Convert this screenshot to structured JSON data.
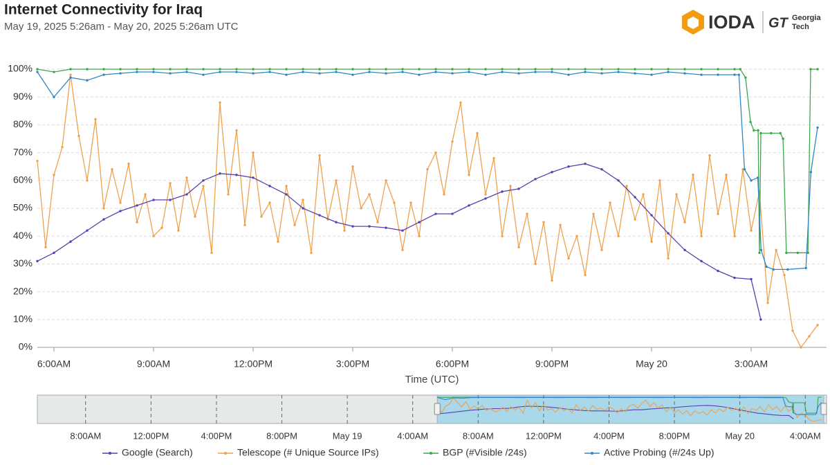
{
  "header": {
    "title": "Internet Connectivity for Iraq",
    "subtitle": "May 19, 2025 5:26am - May 20, 2025 5:26am UTC",
    "logo": "IODA",
    "partner_mark": "GT",
    "partner_name": [
      "Georgia",
      "Tech"
    ]
  },
  "chart_data": [
    {
      "type": "line",
      "xlabel": "Time (UTC)",
      "xlim": [
        5.5,
        29.27
      ],
      "ylim": [
        0,
        100
      ],
      "grid": true,
      "xticks": [
        {
          "value": 6,
          "label": "6:00AM"
        },
        {
          "value": 9,
          "label": "9:00AM"
        },
        {
          "value": 12,
          "label": "12:00PM"
        },
        {
          "value": 15,
          "label": "3:00PM"
        },
        {
          "value": 18,
          "label": "6:00PM"
        },
        {
          "value": 21,
          "label": "9:00PM"
        },
        {
          "value": 24,
          "label": "May 20"
        },
        {
          "value": 27,
          "label": "3:00AM"
        }
      ],
      "yticks": [
        {
          "value": 0,
          "label": "0%"
        },
        {
          "value": 10,
          "label": "10%"
        },
        {
          "value": 20,
          "label": "20%"
        },
        {
          "value": 30,
          "label": "30%"
        },
        {
          "value": 40,
          "label": "40%"
        },
        {
          "value": 50,
          "label": "50%"
        },
        {
          "value": 60,
          "label": "60%"
        },
        {
          "value": 70,
          "label": "70%"
        },
        {
          "value": 80,
          "label": "80%"
        },
        {
          "value": 90,
          "label": "90%"
        },
        {
          "value": 100,
          "label": "100%"
        }
      ],
      "series": [
        {
          "name": "Google (Search)",
          "color": "#5b3fb0",
          "x": [
            5.5,
            6,
            6.5,
            7,
            7.5,
            8,
            8.5,
            9,
            9.5,
            10,
            10.5,
            11,
            11.5,
            12,
            12.5,
            13,
            13.5,
            14,
            14.5,
            15,
            15.5,
            16,
            16.5,
            17,
            17.5,
            18,
            18.5,
            19,
            19.5,
            20,
            20.5,
            21,
            21.5,
            22,
            22.5,
            23,
            23.5,
            24,
            24.5,
            25,
            25.5,
            26,
            26.5,
            27,
            27.29
          ],
          "values": [
            31,
            34,
            38,
            42,
            46,
            49,
            51,
            53,
            53,
            55,
            60,
            62.5,
            62,
            61,
            58,
            55,
            50,
            47.5,
            45,
            43.5,
            43.5,
            43,
            42,
            45,
            48,
            48,
            51,
            53.5,
            56,
            57,
            60.5,
            63,
            65,
            66,
            64,
            60,
            54,
            47.5,
            41,
            35,
            31,
            27.5,
            25,
            24.5,
            10
          ]
        },
        {
          "name": "Telescope (# Unique Source IPs)",
          "color": "#eea24c",
          "x": [
            5.5,
            5.75,
            6,
            6.25,
            6.5,
            6.75,
            7,
            7.25,
            7.5,
            7.75,
            8,
            8.25,
            8.5,
            8.75,
            9,
            9.25,
            9.5,
            9.75,
            10,
            10.25,
            10.5,
            10.75,
            11,
            11.25,
            11.5,
            11.75,
            12,
            12.25,
            12.5,
            12.75,
            13,
            13.25,
            13.5,
            13.75,
            14,
            14.25,
            14.5,
            14.75,
            15,
            15.25,
            15.5,
            15.75,
            16,
            16.25,
            16.5,
            16.75,
            17,
            17.25,
            17.5,
            17.75,
            18,
            18.25,
            18.5,
            18.75,
            19,
            19.25,
            19.5,
            19.75,
            20,
            20.25,
            20.5,
            20.75,
            21,
            21.25,
            21.5,
            21.75,
            22,
            22.25,
            22.5,
            22.75,
            23,
            23.25,
            23.5,
            23.75,
            24,
            24.25,
            24.5,
            24.75,
            25,
            25.25,
            25.5,
            25.75,
            26,
            26.25,
            26.5,
            26.75,
            27,
            27.25,
            27.5,
            27.75,
            28,
            28.25,
            28.5,
            28.75,
            29
          ],
          "values": [
            67,
            36,
            62,
            72,
            98,
            76,
            60,
            82,
            50,
            64,
            52,
            66,
            45,
            55,
            40,
            43,
            59,
            42,
            61,
            47,
            58,
            34,
            88,
            55,
            78,
            44,
            70,
            47,
            52,
            38,
            58,
            44,
            53,
            34,
            69,
            46,
            60,
            42,
            65,
            50,
            55,
            45,
            60,
            52,
            35,
            52,
            40,
            64,
            70,
            55,
            74,
            88,
            62,
            77,
            55,
            68,
            40,
            58,
            36,
            48,
            30,
            45,
            24,
            44,
            32,
            40,
            26,
            48,
            35,
            52,
            40,
            58,
            46,
            55,
            38,
            60,
            32,
            55,
            45,
            62,
            40,
            69,
            48,
            62,
            40,
            64,
            42,
            56,
            16,
            35,
            26,
            6,
            0,
            4,
            8
          ]
        },
        {
          "name": "BGP (#Visible /24s)",
          "color": "#3aa84a",
          "x": [
            5.5,
            6,
            6.5,
            7,
            7.5,
            8,
            8.5,
            9,
            9.5,
            10,
            10.5,
            11,
            11.5,
            12,
            12.5,
            13,
            13.5,
            14,
            14.5,
            15,
            15.5,
            16,
            16.5,
            17,
            17.5,
            18,
            18.5,
            19,
            19.5,
            20,
            20.5,
            21,
            21.5,
            22,
            22.5,
            23,
            23.5,
            24,
            24.5,
            25,
            25.5,
            26,
            26.5,
            26.67,
            26.83,
            26.98,
            27.08,
            27.21,
            27.25,
            27.29,
            27.6,
            27.88,
            27.96,
            28.06,
            28.4,
            28.71,
            28.79,
            29
          ],
          "values": [
            100,
            99,
            100,
            100,
            100,
            100,
            100,
            100,
            100,
            100,
            100,
            100,
            100,
            100,
            100,
            100,
            100,
            100,
            100,
            100,
            100,
            100,
            100,
            100,
            100,
            100,
            100,
            100,
            100,
            100,
            100,
            100,
            100,
            100,
            100,
            100,
            100,
            100,
            100,
            100,
            100,
            100,
            100,
            100,
            97,
            81,
            78,
            78,
            34,
            77,
            77,
            77,
            75,
            34,
            34,
            34,
            100,
            100
          ]
        },
        {
          "name": "Active Probing (#/24s Up)",
          "color": "#2f86c8",
          "x": [
            5.5,
            6,
            6.5,
            7,
            7.5,
            8,
            8.5,
            9,
            9.5,
            10,
            10.5,
            11,
            11.5,
            12,
            12.5,
            13,
            13.5,
            14,
            14.5,
            15,
            15.5,
            16,
            16.5,
            17,
            17.5,
            18,
            18.5,
            19,
            19.5,
            20,
            20.5,
            21,
            21.5,
            22,
            22.5,
            23,
            23.5,
            24,
            24.5,
            25,
            25.5,
            26,
            26.5,
            26.63,
            26.8,
            27,
            27.2,
            27.3,
            27.46,
            27.67,
            28.1,
            28.65,
            28.8,
            29
          ],
          "values": [
            99,
            90,
            97,
            96,
            98,
            98.5,
            99,
            99,
            98.5,
            99,
            98,
            99,
            99,
            98.5,
            99,
            98,
            99,
            98.5,
            99,
            98,
            99,
            98.5,
            99,
            98,
            99,
            98.5,
            99,
            98,
            99,
            98.5,
            99,
            99,
            98,
            99,
            98.5,
            99,
            98.5,
            98,
            99,
            98.5,
            98,
            98,
            98,
            98,
            64,
            60,
            61,
            35,
            29,
            28,
            28,
            28.5,
            63,
            79
          ]
        }
      ]
    },
    {
      "type": "navigator",
      "xlim": [
        -18.95,
        29.3
      ],
      "xticks": [
        {
          "value": -16,
          "label": "8:00AM"
        },
        {
          "value": -12,
          "label": "12:00PM"
        },
        {
          "value": -8,
          "label": "4:00PM"
        },
        {
          "value": -4,
          "label": "8:00PM"
        },
        {
          "value": 0,
          "label": "May 19"
        },
        {
          "value": 4,
          "label": "4:00AM"
        },
        {
          "value": 8,
          "label": "8:00AM"
        },
        {
          "value": 12,
          "label": "12:00PM"
        },
        {
          "value": 16,
          "label": "4:00PM"
        },
        {
          "value": 20,
          "label": "8:00PM"
        },
        {
          "value": 24,
          "label": "May 20"
        },
        {
          "value": 28,
          "label": "4:00AM"
        }
      ]
    }
  ]
}
